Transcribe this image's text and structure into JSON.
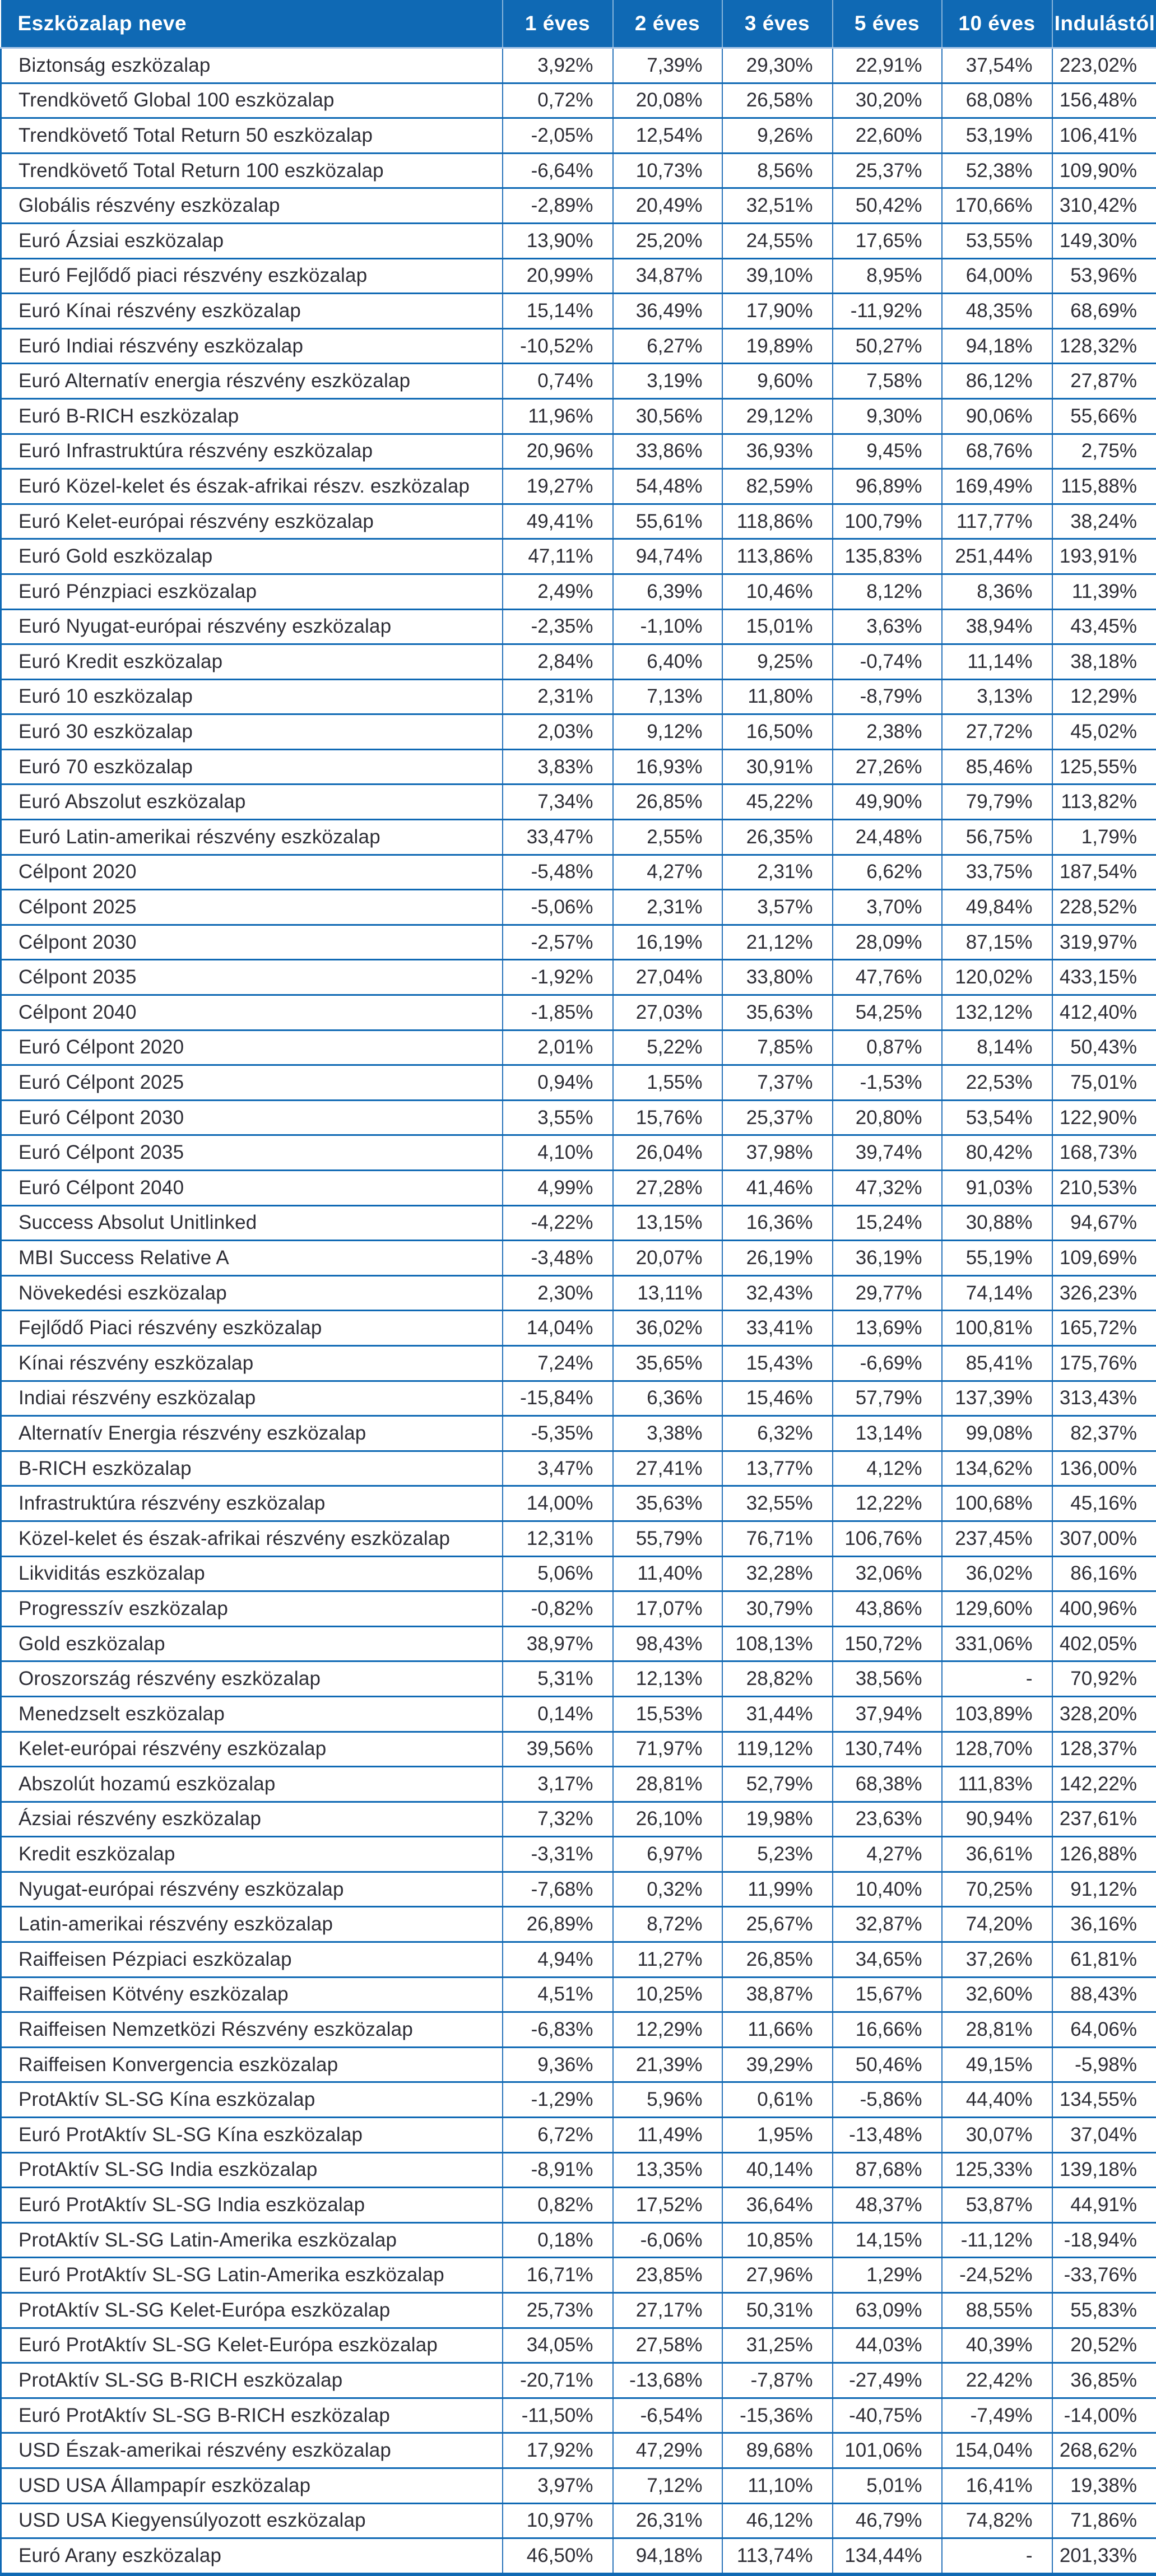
{
  "colors": {
    "header_bg": "#0f69b4",
    "border_blue": "#2a74ba",
    "header_separator": "rgba(255,255,255,0.5)",
    "header_underline": "#a9c7e7",
    "body_text": "#2e2e36",
    "header_text": "#ffffff"
  },
  "table": {
    "columns": [
      "Eszközalap neve",
      "1 éves",
      "2 éves",
      "3 éves",
      "5 éves",
      "10 éves",
      "Indulástól"
    ],
    "rows": [
      {
        "name": "Biztonság eszközalap",
        "values": [
          "3,92%",
          "7,39%",
          "29,30%",
          "22,91%",
          "37,54%",
          "223,02%"
        ]
      },
      {
        "name": "Trendkövető Global 100 eszközalap",
        "values": [
          "0,72%",
          "20,08%",
          "26,58%",
          "30,20%",
          "68,08%",
          "156,48%"
        ]
      },
      {
        "name": "Trendkövető Total Return 50 eszközalap",
        "values": [
          "-2,05%",
          "12,54%",
          "9,26%",
          "22,60%",
          "53,19%",
          "106,41%"
        ]
      },
      {
        "name": "Trendkövető Total Return 100 eszközalap",
        "values": [
          "-6,64%",
          "10,73%",
          "8,56%",
          "25,37%",
          "52,38%",
          "109,90%"
        ]
      },
      {
        "name": "Globális részvény eszközalap",
        "values": [
          "-2,89%",
          "20,49%",
          "32,51%",
          "50,42%",
          "170,66%",
          "310,42%"
        ]
      },
      {
        "name": "Euró Ázsiai eszközalap",
        "values": [
          "13,90%",
          "25,20%",
          "24,55%",
          "17,65%",
          "53,55%",
          "149,30%"
        ]
      },
      {
        "name": "Euró Fejlődő piaci részvény eszközalap",
        "values": [
          "20,99%",
          "34,87%",
          "39,10%",
          "8,95%",
          "64,00%",
          "53,96%"
        ]
      },
      {
        "name": "Euró Kínai részvény eszközalap",
        "values": [
          "15,14%",
          "36,49%",
          "17,90%",
          "-11,92%",
          "48,35%",
          "68,69%"
        ]
      },
      {
        "name": "Euró Indiai részvény eszközalap",
        "values": [
          "-10,52%",
          "6,27%",
          "19,89%",
          "50,27%",
          "94,18%",
          "128,32%"
        ]
      },
      {
        "name": "Euró Alternatív energia részvény eszközalap",
        "values": [
          "0,74%",
          "3,19%",
          "9,60%",
          "7,58%",
          "86,12%",
          "27,87%"
        ]
      },
      {
        "name": "Euró B-RICH eszközalap",
        "values": [
          "11,96%",
          "30,56%",
          "29,12%",
          "9,30%",
          "90,06%",
          "55,66%"
        ]
      },
      {
        "name": "Euró Infrastruktúra részvény eszközalap",
        "values": [
          "20,96%",
          "33,86%",
          "36,93%",
          "9,45%",
          "68,76%",
          "2,75%"
        ]
      },
      {
        "name": "Euró Közel-kelet és észak-afrikai részv. eszközalap",
        "values": [
          "19,27%",
          "54,48%",
          "82,59%",
          "96,89%",
          "169,49%",
          "115,88%"
        ]
      },
      {
        "name": "Euró Kelet-európai részvény eszközalap",
        "values": [
          "49,41%",
          "55,61%",
          "118,86%",
          "100,79%",
          "117,77%",
          "38,24%"
        ]
      },
      {
        "name": "Euró Gold eszközalap",
        "values": [
          "47,11%",
          "94,74%",
          "113,86%",
          "135,83%",
          "251,44%",
          "193,91%"
        ]
      },
      {
        "name": "Euró Pénzpiaci eszközalap",
        "values": [
          "2,49%",
          "6,39%",
          "10,46%",
          "8,12%",
          "8,36%",
          "11,39%"
        ]
      },
      {
        "name": "Euró Nyugat-európai részvény eszközalap",
        "values": [
          "-2,35%",
          "-1,10%",
          "15,01%",
          "3,63%",
          "38,94%",
          "43,45%"
        ]
      },
      {
        "name": "Euró Kredit eszközalap",
        "values": [
          "2,84%",
          "6,40%",
          "9,25%",
          "-0,74%",
          "11,14%",
          "38,18%"
        ]
      },
      {
        "name": "Euró 10 eszközalap",
        "values": [
          "2,31%",
          "7,13%",
          "11,80%",
          "-8,79%",
          "3,13%",
          "12,29%"
        ]
      },
      {
        "name": "Euró 30 eszközalap",
        "values": [
          "2,03%",
          "9,12%",
          "16,50%",
          "2,38%",
          "27,72%",
          "45,02%"
        ]
      },
      {
        "name": "Euró 70 eszközalap",
        "values": [
          "3,83%",
          "16,93%",
          "30,91%",
          "27,26%",
          "85,46%",
          "125,55%"
        ]
      },
      {
        "name": "Euró Abszolut eszközalap",
        "values": [
          "7,34%",
          "26,85%",
          "45,22%",
          "49,90%",
          "79,79%",
          "113,82%"
        ]
      },
      {
        "name": "Euró Latin-amerikai részvény eszközalap",
        "values": [
          "33,47%",
          "2,55%",
          "26,35%",
          "24,48%",
          "56,75%",
          "1,79%"
        ]
      },
      {
        "name": "Célpont 2020",
        "values": [
          "-5,48%",
          "4,27%",
          "2,31%",
          "6,62%",
          "33,75%",
          "187,54%"
        ]
      },
      {
        "name": "Célpont 2025",
        "values": [
          "-5,06%",
          "2,31%",
          "3,57%",
          "3,70%",
          "49,84%",
          "228,52%"
        ]
      },
      {
        "name": "Célpont 2030",
        "values": [
          "-2,57%",
          "16,19%",
          "21,12%",
          "28,09%",
          "87,15%",
          "319,97%"
        ]
      },
      {
        "name": "Célpont 2035",
        "values": [
          "-1,92%",
          "27,04%",
          "33,80%",
          "47,76%",
          "120,02%",
          "433,15%"
        ]
      },
      {
        "name": "Célpont 2040",
        "values": [
          "-1,85%",
          "27,03%",
          "35,63%",
          "54,25%",
          "132,12%",
          "412,40%"
        ]
      },
      {
        "name": "Euró Célpont 2020",
        "values": [
          "2,01%",
          "5,22%",
          "7,85%",
          "0,87%",
          "8,14%",
          "50,43%"
        ]
      },
      {
        "name": "Euró Célpont 2025",
        "values": [
          "0,94%",
          "1,55%",
          "7,37%",
          "-1,53%",
          "22,53%",
          "75,01%"
        ]
      },
      {
        "name": "Euró Célpont 2030",
        "values": [
          "3,55%",
          "15,76%",
          "25,37%",
          "20,80%",
          "53,54%",
          "122,90%"
        ]
      },
      {
        "name": "Euró Célpont 2035",
        "values": [
          "4,10%",
          "26,04%",
          "37,98%",
          "39,74%",
          "80,42%",
          "168,73%"
        ]
      },
      {
        "name": "Euró Célpont 2040",
        "values": [
          "4,99%",
          "27,28%",
          "41,46%",
          "47,32%",
          "91,03%",
          "210,53%"
        ]
      },
      {
        "name": "Success Absolut Unitlinked",
        "values": [
          "-4,22%",
          "13,15%",
          "16,36%",
          "15,24%",
          "30,88%",
          "94,67%"
        ]
      },
      {
        "name": "MBI Success Relative A",
        "values": [
          "-3,48%",
          "20,07%",
          "26,19%",
          "36,19%",
          "55,19%",
          "109,69%"
        ]
      },
      {
        "name": "Növekedési eszközalap",
        "values": [
          "2,30%",
          "13,11%",
          "32,43%",
          "29,77%",
          "74,14%",
          "326,23%"
        ]
      },
      {
        "name": "Fejlődő Piaci részvény eszközalap",
        "values": [
          "14,04%",
          "36,02%",
          "33,41%",
          "13,69%",
          "100,81%",
          "165,72%"
        ]
      },
      {
        "name": "Kínai részvény eszközalap",
        "values": [
          "7,24%",
          "35,65%",
          "15,43%",
          "-6,69%",
          "85,41%",
          "175,76%"
        ]
      },
      {
        "name": "Indiai részvény eszközalap",
        "values": [
          "-15,84%",
          "6,36%",
          "15,46%",
          "57,79%",
          "137,39%",
          "313,43%"
        ]
      },
      {
        "name": "Alternatív Energia részvény eszközalap",
        "values": [
          "-5,35%",
          "3,38%",
          "6,32%",
          "13,14%",
          "99,08%",
          "82,37%"
        ]
      },
      {
        "name": "B-RICH eszközalap",
        "values": [
          "3,47%",
          "27,41%",
          "13,77%",
          "4,12%",
          "134,62%",
          "136,00%"
        ]
      },
      {
        "name": "Infrastruktúra részvény eszközalap",
        "values": [
          "14,00%",
          "35,63%",
          "32,55%",
          "12,22%",
          "100,68%",
          "45,16%"
        ]
      },
      {
        "name": "Közel-kelet és észak-afrikai részvény eszközalap",
        "values": [
          "12,31%",
          "55,79%",
          "76,71%",
          "106,76%",
          "237,45%",
          "307,00%"
        ]
      },
      {
        "name": "Likviditás eszközalap",
        "values": [
          "5,06%",
          "11,40%",
          "32,28%",
          "32,06%",
          "36,02%",
          "86,16%"
        ]
      },
      {
        "name": "Progresszív eszközalap",
        "values": [
          "-0,82%",
          "17,07%",
          "30,79%",
          "43,86%",
          "129,60%",
          "400,96%"
        ]
      },
      {
        "name": "Gold eszközalap",
        "values": [
          "38,97%",
          "98,43%",
          "108,13%",
          "150,72%",
          "331,06%",
          "402,05%"
        ]
      },
      {
        "name": "Oroszország részvény eszközalap",
        "values": [
          "5,31%",
          "12,13%",
          "28,82%",
          "38,56%",
          "-",
          "70,92%"
        ]
      },
      {
        "name": "Menedzselt eszközalap",
        "values": [
          "0,14%",
          "15,53%",
          "31,44%",
          "37,94%",
          "103,89%",
          "328,20%"
        ]
      },
      {
        "name": "Kelet-európai részvény eszközalap",
        "values": [
          "39,56%",
          "71,97%",
          "119,12%",
          "130,74%",
          "128,70%",
          "128,37%"
        ]
      },
      {
        "name": "Abszolút hozamú eszközalap",
        "values": [
          "3,17%",
          "28,81%",
          "52,79%",
          "68,38%",
          "111,83%",
          "142,22%"
        ]
      },
      {
        "name": "Ázsiai részvény eszközalap",
        "values": [
          "7,32%",
          "26,10%",
          "19,98%",
          "23,63%",
          "90,94%",
          "237,61%"
        ]
      },
      {
        "name": "Kredit eszközalap",
        "values": [
          "-3,31%",
          "6,97%",
          "5,23%",
          "4,27%",
          "36,61%",
          "126,88%"
        ]
      },
      {
        "name": "Nyugat-európai részvény eszközalap",
        "values": [
          "-7,68%",
          "0,32%",
          "11,99%",
          "10,40%",
          "70,25%",
          "91,12%"
        ]
      },
      {
        "name": "Latin-amerikai részvény eszközalap",
        "values": [
          "26,89%",
          "8,72%",
          "25,67%",
          "32,87%",
          "74,20%",
          "36,16%"
        ]
      },
      {
        "name": "Raiffeisen Pézpiaci eszközalap",
        "values": [
          "4,94%",
          "11,27%",
          "26,85%",
          "34,65%",
          "37,26%",
          "61,81%"
        ]
      },
      {
        "name": "Raiffeisen Kötvény eszközalap",
        "values": [
          "4,51%",
          "10,25%",
          "38,87%",
          "15,67%",
          "32,60%",
          "88,43%"
        ]
      },
      {
        "name": "Raiffeisen Nemzetközi Részvény eszközalap",
        "values": [
          "-6,83%",
          "12,29%",
          "11,66%",
          "16,66%",
          "28,81%",
          "64,06%"
        ]
      },
      {
        "name": "Raiffeisen Konvergencia eszközalap",
        "values": [
          "9,36%",
          "21,39%",
          "39,29%",
          "50,46%",
          "49,15%",
          "-5,98%"
        ]
      },
      {
        "name": "ProtAktív SL-SG Kína eszközalap",
        "values": [
          "-1,29%",
          "5,96%",
          "0,61%",
          "-5,86%",
          "44,40%",
          "134,55%"
        ]
      },
      {
        "name": "Euró ProtAktív SL-SG Kína eszközalap",
        "values": [
          "6,72%",
          "11,49%",
          "1,95%",
          "-13,48%",
          "30,07%",
          "37,04%"
        ]
      },
      {
        "name": "ProtAktív SL-SG India eszközalap",
        "values": [
          "-8,91%",
          "13,35%",
          "40,14%",
          "87,68%",
          "125,33%",
          "139,18%"
        ]
      },
      {
        "name": "Euró ProtAktív SL-SG India eszközalap",
        "values": [
          "0,82%",
          "17,52%",
          "36,64%",
          "48,37%",
          "53,87%",
          "44,91%"
        ]
      },
      {
        "name": "ProtAktív SL-SG Latin-Amerika eszközalap",
        "values": [
          "0,18%",
          "-6,06%",
          "10,85%",
          "14,15%",
          "-11,12%",
          "-18,94%"
        ]
      },
      {
        "name": "Euró ProtAktív SL-SG Latin-Amerika eszközalap",
        "values": [
          "16,71%",
          "23,85%",
          "27,96%",
          "1,29%",
          "-24,52%",
          "-33,76%"
        ]
      },
      {
        "name": "ProtAktív SL-SG Kelet-Európa eszközalap",
        "values": [
          "25,73%",
          "27,17%",
          "50,31%",
          "63,09%",
          "88,55%",
          "55,83%"
        ]
      },
      {
        "name": "Euró ProtAktív SL-SG Kelet-Európa eszközalap",
        "values": [
          "34,05%",
          "27,58%",
          "31,25%",
          "44,03%",
          "40,39%",
          "20,52%"
        ]
      },
      {
        "name": "ProtAktív SL-SG B-RICH eszközalap",
        "values": [
          "-20,71%",
          "-13,68%",
          "-7,87%",
          "-27,49%",
          "22,42%",
          "36,85%"
        ]
      },
      {
        "name": "Euró ProtAktív SL-SG B-RICH eszközalap",
        "values": [
          "-11,50%",
          "-6,54%",
          "-15,36%",
          "-40,75%",
          "-7,49%",
          "-14,00%"
        ]
      },
      {
        "name": "USD Észak-amerikai részvény eszközalap",
        "values": [
          "17,92%",
          "47,29%",
          "89,68%",
          "101,06%",
          "154,04%",
          "268,62%"
        ]
      },
      {
        "name": "USD USA Állampapír eszközalap",
        "values": [
          "3,97%",
          "7,12%",
          "11,10%",
          "5,01%",
          "16,41%",
          "19,38%"
        ]
      },
      {
        "name": "USD USA Kiegyensúlyozott eszközalap",
        "values": [
          "10,97%",
          "26,31%",
          "46,12%",
          "46,79%",
          "74,82%",
          "71,86%"
        ]
      },
      {
        "name": "Euró Arany eszközalap",
        "values": [
          "46,50%",
          "94,18%",
          "113,74%",
          "134,44%",
          "-",
          "201,33%"
        ]
      }
    ]
  }
}
